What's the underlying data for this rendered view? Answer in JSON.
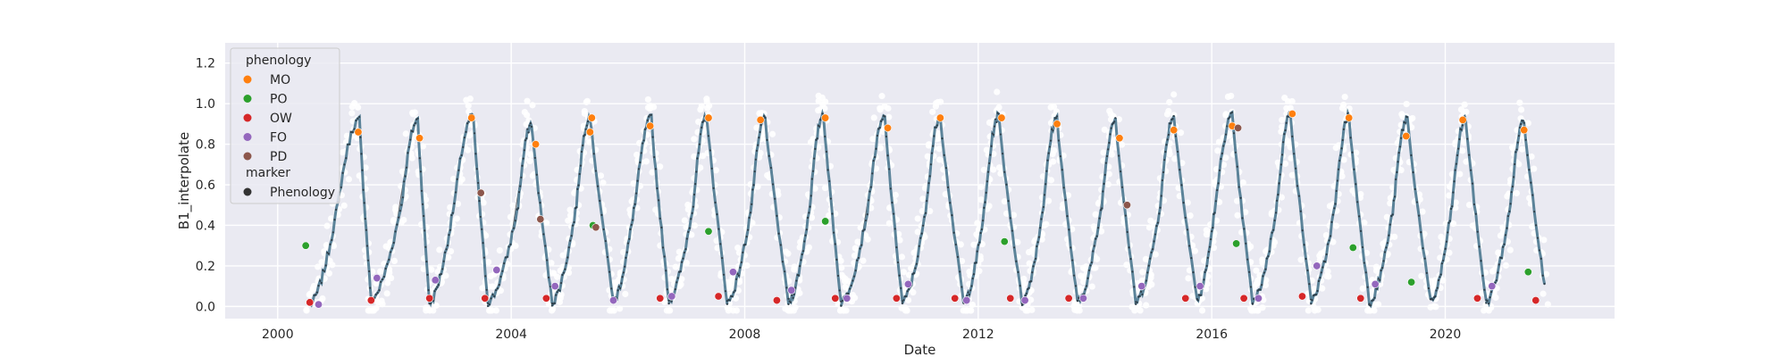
{
  "chart_data": {
    "type": "scatter",
    "xlabel": "Date",
    "ylabel": "B1_interpolate",
    "xlim": [
      1999.1,
      2022.9
    ],
    "ylim": [
      -0.06,
      1.3
    ],
    "x_ticks": [
      {
        "value": 2000,
        "label": "2000"
      },
      {
        "value": 2004,
        "label": "2004"
      },
      {
        "value": 2008,
        "label": "2008"
      },
      {
        "value": 2012,
        "label": "2012"
      },
      {
        "value": 2016,
        "label": "2016"
      },
      {
        "value": 2020,
        "label": "2020"
      }
    ],
    "y_ticks": [
      {
        "value": 0.0,
        "label": "0.0"
      },
      {
        "value": 0.2,
        "label": "0.2"
      },
      {
        "value": 0.4,
        "label": "0.4"
      },
      {
        "value": 0.6,
        "label": "0.6"
      },
      {
        "value": 0.8,
        "label": "0.8"
      },
      {
        "value": 1.0,
        "label": "1.0"
      },
      {
        "value": 1.2,
        "label": "1.2"
      }
    ],
    "grid": true,
    "background_color": "#eaeaf2",
    "legend": {
      "placement": "top-left",
      "title": "phenology",
      "entries": [
        {
          "label": "MO",
          "color": "#ff7f0e"
        },
        {
          "label": "PO",
          "color": "#2ca02c"
        },
        {
          "label": "OW",
          "color": "#d62728"
        },
        {
          "label": "FO",
          "color": "#9467bd"
        },
        {
          "label": "PD",
          "color": "#8c564b"
        }
      ],
      "marker_title": "marker",
      "marker_entries": [
        {
          "label": "Phenology",
          "color": "#333333"
        }
      ]
    },
    "colors": {
      "series_line": "#5b8399",
      "raw_points": "#ffffff",
      "gap_line": "#555555"
    },
    "annual_cycle": {
      "description_note": "",
      "series_start_year": 2000.35,
      "series_end_year": 2021.9
    },
    "seasons": [
      {
        "year": 2000,
        "min_x": 2000.55,
        "min_y": 0.01,
        "rise_end_x": 2001.0,
        "peak_x": 2001.4,
        "peak_y": 0.92,
        "fall_x": 2001.75
      },
      {
        "year": 2001,
        "min_x": 2001.6,
        "min_y": 0.03,
        "rise_end_x": 2002.1,
        "peak_x": 2002.4,
        "peak_y": 0.92,
        "fall_x": 2002.6
      },
      {
        "year": 2002,
        "min_x": 2002.6,
        "min_y": 0.02,
        "rise_end_x": 2003.0,
        "peak_x": 2003.35,
        "peak_y": 0.94,
        "fall_x": 2003.6
      },
      {
        "year": 2003,
        "min_x": 2003.6,
        "min_y": 0.02,
        "rise_end_x": 2004.1,
        "peak_x": 2004.35,
        "peak_y": 0.9,
        "fall_x": 2004.7
      },
      {
        "year": 2004,
        "min_x": 2004.7,
        "min_y": 0.02,
        "rise_end_x": 2005.1,
        "peak_x": 2005.35,
        "peak_y": 0.94,
        "fall_x": 2005.55
      },
      {
        "year": 2005,
        "min_x": 2005.75,
        "min_y": 0.03,
        "rise_end_x": 2006.1,
        "peak_x": 2006.4,
        "peak_y": 0.93,
        "fall_x": 2006.6
      },
      {
        "year": 2006,
        "min_x": 2006.7,
        "min_y": 0.03,
        "rise_end_x": 2007.1,
        "peak_x": 2007.35,
        "peak_y": 0.94,
        "fall_x": 2007.6
      },
      {
        "year": 2007,
        "min_x": 2007.7,
        "min_y": 0.02,
        "rise_end_x": 2008.1,
        "peak_x": 2008.35,
        "peak_y": 0.93,
        "fall_x": 2008.6
      },
      {
        "year": 2008,
        "min_x": 2008.75,
        "min_y": 0.02,
        "rise_end_x": 2009.1,
        "peak_x": 2009.35,
        "peak_y": 0.95,
        "fall_x": 2009.6
      },
      {
        "year": 2009,
        "min_x": 2009.65,
        "min_y": 0.02,
        "rise_end_x": 2010.1,
        "peak_x": 2010.4,
        "peak_y": 0.93,
        "fall_x": 2010.6
      },
      {
        "year": 2010,
        "min_x": 2010.7,
        "min_y": 0.02,
        "rise_end_x": 2011.1,
        "peak_x": 2011.35,
        "peak_y": 0.94,
        "fall_x": 2011.6
      },
      {
        "year": 2011,
        "min_x": 2011.75,
        "min_y": 0.02,
        "rise_end_x": 2012.1,
        "peak_x": 2012.35,
        "peak_y": 0.94,
        "fall_x": 2012.6
      },
      {
        "year": 2012,
        "min_x": 2012.75,
        "min_y": 0.02,
        "rise_end_x": 2013.1,
        "peak_x": 2013.35,
        "peak_y": 0.93,
        "fall_x": 2013.6
      },
      {
        "year": 2013,
        "min_x": 2013.7,
        "min_y": 0.02,
        "rise_end_x": 2014.1,
        "peak_x": 2014.35,
        "peak_y": 0.93,
        "fall_x": 2014.55
      },
      {
        "year": 2014,
        "min_x": 2014.7,
        "min_y": 0.02,
        "rise_end_x": 2015.1,
        "peak_x": 2015.35,
        "peak_y": 0.94,
        "fall_x": 2015.6
      },
      {
        "year": 2015,
        "min_x": 2015.75,
        "min_y": 0.03,
        "rise_end_x": 2016.05,
        "peak_x": 2016.35,
        "peak_y": 0.94,
        "fall_x": 2016.55
      },
      {
        "year": 2016,
        "min_x": 2016.7,
        "min_y": 0.02,
        "rise_end_x": 2017.1,
        "peak_x": 2017.35,
        "peak_y": 0.95,
        "fall_x": 2017.55
      },
      {
        "year": 2017,
        "min_x": 2017.7,
        "min_y": 0.03,
        "rise_end_x": 2018.1,
        "peak_x": 2018.35,
        "peak_y": 0.94,
        "fall_x": 2018.55
      },
      {
        "year": 2018,
        "min_x": 2018.7,
        "min_y": 0.02,
        "rise_end_x": 2019.1,
        "peak_x": 2019.35,
        "peak_y": 0.93,
        "fall_x": 2019.6
      },
      {
        "year": 2019,
        "min_x": 2019.75,
        "min_y": 0.02,
        "rise_end_x": 2020.1,
        "peak_x": 2020.35,
        "peak_y": 0.93,
        "fall_x": 2020.55
      },
      {
        "year": 2020,
        "min_x": 2020.7,
        "min_y": 0.02,
        "rise_end_x": 2021.1,
        "peak_x": 2021.35,
        "peak_y": 0.92,
        "fall_x": 2021.55
      }
    ],
    "phenology_points": {
      "MO": [
        [
          2001.38,
          0.86
        ],
        [
          2002.43,
          0.83
        ],
        [
          2003.32,
          0.93
        ],
        [
          2004.42,
          0.8
        ],
        [
          2005.35,
          0.86
        ],
        [
          2005.38,
          0.93
        ],
        [
          2006.38,
          0.89
        ],
        [
          2007.38,
          0.93
        ],
        [
          2008.27,
          0.92
        ],
        [
          2009.38,
          0.93
        ],
        [
          2010.45,
          0.88
        ],
        [
          2011.35,
          0.93
        ],
        [
          2012.4,
          0.93
        ],
        [
          2013.35,
          0.9
        ],
        [
          2014.42,
          0.83
        ],
        [
          2015.35,
          0.87
        ],
        [
          2016.35,
          0.89
        ],
        [
          2017.38,
          0.95
        ],
        [
          2018.35,
          0.93
        ],
        [
          2019.33,
          0.84
        ],
        [
          2020.3,
          0.92
        ],
        [
          2021.35,
          0.87
        ]
      ],
      "PO": [
        [
          2000.48,
          0.3
        ],
        [
          2005.4,
          0.4
        ],
        [
          2007.38,
          0.37
        ],
        [
          2009.38,
          0.42
        ],
        [
          2012.45,
          0.32
        ],
        [
          2016.42,
          0.31
        ],
        [
          2018.42,
          0.29
        ],
        [
          2019.42,
          0.12
        ],
        [
          2021.42,
          0.17
        ]
      ],
      "OW": [
        [
          2000.55,
          0.02
        ],
        [
          2001.6,
          0.03
        ],
        [
          2002.6,
          0.04
        ],
        [
          2003.55,
          0.04
        ],
        [
          2004.6,
          0.04
        ],
        [
          2006.55,
          0.04
        ],
        [
          2007.55,
          0.05
        ],
        [
          2008.55,
          0.03
        ],
        [
          2009.55,
          0.04
        ],
        [
          2010.6,
          0.04
        ],
        [
          2011.6,
          0.04
        ],
        [
          2012.55,
          0.04
        ],
        [
          2013.55,
          0.04
        ],
        [
          2015.55,
          0.04
        ],
        [
          2016.55,
          0.04
        ],
        [
          2017.55,
          0.05
        ],
        [
          2018.55,
          0.04
        ],
        [
          2020.55,
          0.04
        ],
        [
          2021.55,
          0.03
        ]
      ],
      "FO": [
        [
          2000.7,
          0.01
        ],
        [
          2001.7,
          0.14
        ],
        [
          2002.7,
          0.13
        ],
        [
          2003.75,
          0.18
        ],
        [
          2004.75,
          0.1
        ],
        [
          2005.75,
          0.03
        ],
        [
          2006.75,
          0.05
        ],
        [
          2007.8,
          0.17
        ],
        [
          2008.8,
          0.08
        ],
        [
          2009.75,
          0.04
        ],
        [
          2010.8,
          0.11
        ],
        [
          2011.8,
          0.03
        ],
        [
          2012.8,
          0.03
        ],
        [
          2013.8,
          0.04
        ],
        [
          2014.8,
          0.1
        ],
        [
          2015.8,
          0.1
        ],
        [
          2016.8,
          0.04
        ],
        [
          2017.8,
          0.2
        ],
        [
          2018.8,
          0.11
        ],
        [
          2020.8,
          0.1
        ]
      ],
      "PD": [
        [
          2003.48,
          0.56
        ],
        [
          2004.5,
          0.43
        ],
        [
          2005.45,
          0.39
        ],
        [
          2014.55,
          0.5
        ],
        [
          2016.45,
          0.88
        ]
      ]
    }
  }
}
